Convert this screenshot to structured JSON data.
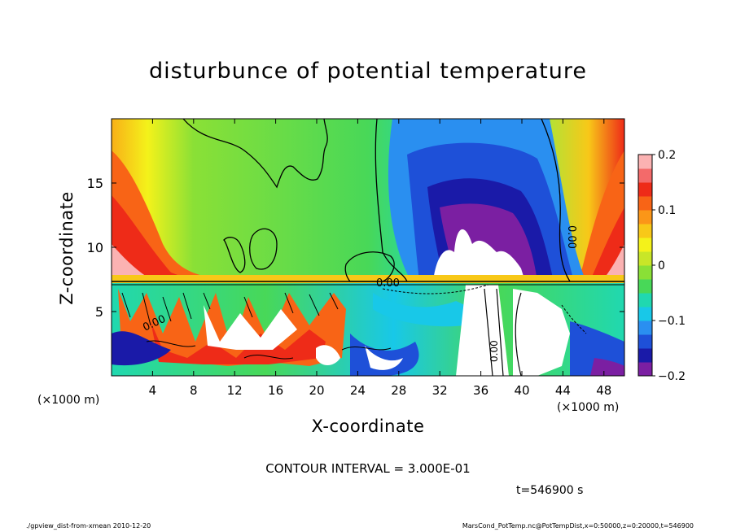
{
  "chart_data": {
    "type": "heatmap",
    "title": "disturbunce of potential temperature",
    "xlabel": "X-coordinate",
    "ylabel": "Z-coordinate",
    "x_unit": "(×1000 m)",
    "y_unit": "(×1000 m)",
    "xlim": [
      0,
      50
    ],
    "ylim": [
      0,
      20
    ],
    "x_ticks": [
      4,
      8,
      12,
      16,
      20,
      24,
      28,
      32,
      36,
      40,
      44,
      48
    ],
    "y_ticks": [
      5,
      10,
      15
    ],
    "colorbar": {
      "ticks": [
        "0.2",
        "0.1",
        "0",
        "−0.1",
        "−0.2"
      ],
      "range": [
        -0.2,
        0.2
      ],
      "colors": [
        "#7b1fa2",
        "#1a1aa8",
        "#1e50d8",
        "#2a8ff0",
        "#18c8e8",
        "#20d8b0",
        "#48d858",
        "#8ae036",
        "#c8e628",
        "#f4f21a",
        "#f8c818",
        "#fb9618",
        "#f86416",
        "#ee2b18",
        "#f36a6a",
        "#fbb2b2"
      ]
    },
    "contour_labels": [
      "0.00",
      "0.00",
      "0.00",
      "0.00"
    ],
    "contour_interval": "CONTOUR INTERVAL = 3.000E-01",
    "time_label": "t=546900 s",
    "footer_left": "./gpview_dist-from-xmean   2010-12-20",
    "footer_right": "MarsCond_PotTemp.nc@PotTempDist,x=0:50000,z=0:20000,t=546900"
  }
}
